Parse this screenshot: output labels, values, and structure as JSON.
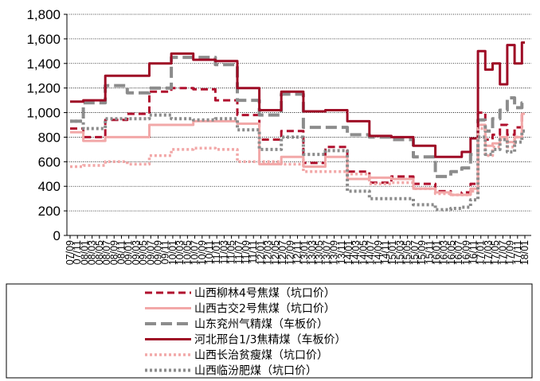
{
  "chart_data": {
    "type": "line",
    "title": "",
    "xlabel": "",
    "ylabel": "",
    "ylim": [
      0,
      1800
    ],
    "yticks": [
      "0",
      "200",
      "400",
      "600",
      "800",
      "1,000",
      "1,200",
      "1,400",
      "1,600",
      "1,800"
    ],
    "grid": "horizontal, dotted",
    "legend_position": "bottom, boxed",
    "x_tick_labels": [
      "07/09",
      "07/11",
      "08/01",
      "08/03",
      "08/05",
      "08/07",
      "08/09",
      "08/11",
      "09/01",
      "09/03",
      "09/05",
      "09/07",
      "09/09",
      "09/11",
      "10/01",
      "10/03",
      "10/05",
      "10/07",
      "10/09",
      "10/11",
      "11/01",
      "11/03",
      "11/05",
      "11/07",
      "11/09",
      "11/11",
      "12/01",
      "12/03",
      "12/05",
      "12/07",
      "12/09",
      "12/11",
      "13/01",
      "13/03",
      "13/05",
      "13/07",
      "13/09",
      "13/11",
      "14/01",
      "14/03",
      "14/05",
      "14/07",
      "14/09",
      "14/11",
      "15/01",
      "15/03",
      "15/05",
      "15/07",
      "15/09",
      "15/11",
      "16/01",
      "16/03",
      "16/05",
      "16/07",
      "16/09",
      "16/11",
      "17/01",
      "17/03",
      "17/05",
      "17/07",
      "17/09",
      "17/11",
      "18/01"
    ],
    "x": [
      "07/09",
      "08/03",
      "08/09",
      "09/03",
      "09/09",
      "10/03",
      "10/09",
      "11/03",
      "11/09",
      "12/03",
      "12/09",
      "13/03",
      "13/09",
      "14/03",
      "14/09",
      "15/03",
      "15/09",
      "16/03",
      "16/06",
      "16/09",
      "16/11",
      "17/01",
      "17/03",
      "17/05",
      "17/07",
      "17/09",
      "17/11",
      "18/01"
    ],
    "series": [
      {
        "name": "山西柳林4号焦煤（坑口价）",
        "color": "#b0102e",
        "dash": "9,5",
        "width": 3,
        "values": [
          870,
          800,
          940,
          990,
          1170,
          1200,
          1190,
          1100,
          980,
          780,
          850,
          590,
          720,
          520,
          430,
          480,
          420,
          360,
          330,
          350,
          420,
          1000,
          780,
          820,
          900,
          820,
          880,
          990
        ]
      },
      {
        "name": "山西古交2号焦煤（坑口价）",
        "color": "#f2a8a8",
        "dash": "",
        "width": 3,
        "values": [
          840,
          770,
          800,
          800,
          900,
          900,
          930,
          930,
          910,
          580,
          640,
          560,
          640,
          460,
          470,
          460,
          380,
          350,
          330,
          330,
          380,
          900,
          730,
          750,
          800,
          760,
          800,
          990
        ]
      },
      {
        "name": "山东兖州气精煤（车板价）",
        "color": "#8c8c8c",
        "dash": "14,6",
        "width": 4,
        "values": [
          930,
          1080,
          1220,
          1160,
          1200,
          1450,
          1450,
          1390,
          1100,
          980,
          1150,
          880,
          880,
          820,
          800,
          780,
          640,
          480,
          520,
          550,
          660,
          940,
          850,
          950,
          1020,
          1120,
          1040,
          1080
        ]
      },
      {
        "name": "河北邢台1/3焦精煤（车板价）",
        "color": "#9e0b25",
        "dash": "",
        "width": 3,
        "values": [
          1090,
          1100,
          1300,
          1300,
          1400,
          1480,
          1430,
          1420,
          1200,
          1020,
          1170,
          1010,
          1020,
          930,
          810,
          800,
          730,
          640,
          640,
          680,
          790,
          1500,
          1350,
          1400,
          1230,
          1550,
          1400,
          1570
        ]
      },
      {
        "name": "山西长治贫瘦煤（坑口价）",
        "color": "#f2a8a8",
        "dash": "3,3",
        "width": 3.5,
        "values": [
          560,
          570,
          600,
          580,
          650,
          700,
          710,
          700,
          600,
          600,
          580,
          520,
          520,
          500,
          420,
          430,
          380,
          340,
          330,
          330,
          360,
          870,
          650,
          720,
          780,
          720,
          800,
          850
        ]
      },
      {
        "name": "山西临汾肥煤（坑口价）",
        "color": "#8c8c8c",
        "dash": "3,3",
        "width": 4,
        "values": [
          930,
          870,
          950,
          950,
          980,
          950,
          940,
          950,
          860,
          700,
          800,
          660,
          690,
          360,
          300,
          300,
          250,
          210,
          220,
          230,
          290,
          800,
          660,
          700,
          780,
          680,
          760,
          850
        ]
      }
    ]
  }
}
